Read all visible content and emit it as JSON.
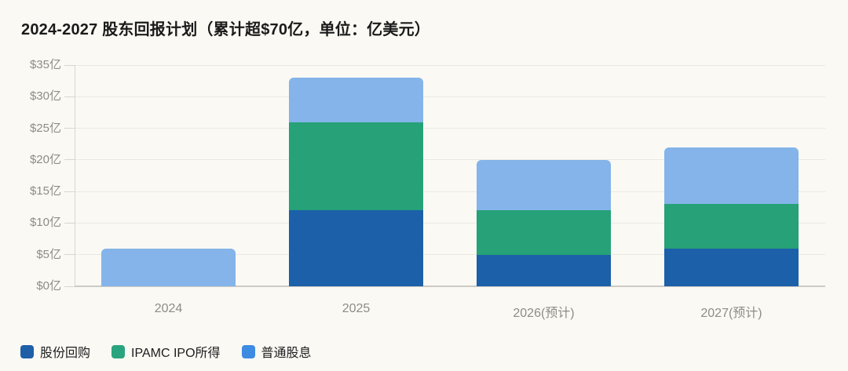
{
  "colors": {
    "background": "#faf9f4",
    "grid": "#ebe9e3",
    "baseline": "#cdcac3",
    "axis": "#d9d6cf",
    "title_text": "#1a1a1a",
    "tick_text": "#8e8c85",
    "legend_text": "#1c1c1c"
  },
  "chart_data": {
    "type": "bar",
    "stacked": true,
    "title": "2024-2027 股东回报计划（累计超$70亿，单位：亿美元）",
    "categories": [
      "2024",
      "2025",
      "2026(预计)",
      "2027(预计)"
    ],
    "series": [
      {
        "name": "股份回购",
        "color": "#1b60a8",
        "legend_color": "#1e5fa8",
        "values": [
          0,
          12,
          5,
          6
        ]
      },
      {
        "name": "IPAMC IPO所得",
        "color": "#26a178",
        "legend_color": "#2aa47e",
        "values": [
          0,
          14,
          7,
          7
        ]
      },
      {
        "name": "普通股息",
        "color": "#84b4e9",
        "legend_color": "#3e8be2",
        "values": [
          6,
          7,
          8,
          9
        ]
      }
    ],
    "totals": [
      6,
      33,
      20,
      22
    ],
    "xlabel": "",
    "ylabel": "亿美元",
    "ylim": [
      0,
      35
    ],
    "ytick_step": 5,
    "y_tick_labels": [
      "$0亿",
      "$5亿",
      "$10亿",
      "$15亿",
      "$20亿",
      "$25亿",
      "$30亿",
      "$35亿"
    ],
    "grid": true,
    "legend_position": "bottom-left"
  }
}
